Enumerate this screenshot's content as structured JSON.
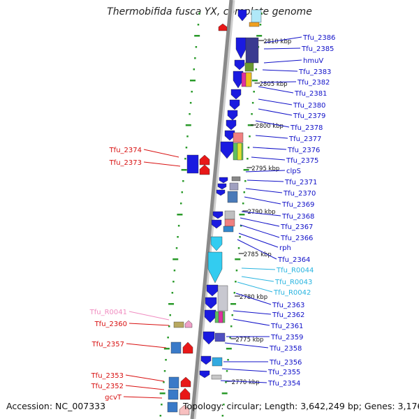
{
  "title": "Thermobifida fusca YX, complete genome",
  "footer": {
    "accession": "Accession: NC_007333",
    "topology": "Topology: circular; Length: 3,642,249 bp; Genes: 3,176"
  },
  "colors": {
    "forward_label": "#1010c8",
    "reverse_label": "#d81010",
    "rna_label": "#28b4e0",
    "pseudo_label": "#f08cc0",
    "backbone": "#8a8a8a",
    "tick": "#2a9a2a"
  },
  "ruler_labels": [
    "2810 kbp",
    "2805 kbp",
    "2800 kbp",
    "2795 kbp",
    "2790 kbp",
    "2785 kbp",
    "2780 kbp",
    "2775 kbp",
    "2770 kbp"
  ],
  "forward_genes": [
    "Tfu_2386",
    "Tfu_2385",
    "hmuV",
    "Tfu_2383",
    "Tfu_2382",
    "Tfu_2381",
    "Tfu_2380",
    "Tfu_2379",
    "Tfu_2378",
    "Tfu_2377",
    "Tfu_2376",
    "Tfu_2375",
    "clpS",
    "Tfu_2371",
    "Tfu_2370",
    "Tfu_2369",
    "Tfu_2368",
    "Tfu_2367",
    "Tfu_2366",
    "rph",
    "Tfu_2364",
    "Tfu_R0044",
    "Tfu_R0043",
    "Tfu_R0042",
    "Tfu_2363",
    "Tfu_2362",
    "Tfu_2361",
    "Tfu_2359",
    "Tfu_2358",
    "Tfu_2356",
    "Tfu_2355",
    "Tfu_2354"
  ],
  "reverse_genes": [
    "Tfu_2374",
    "Tfu_2373",
    "Tfu_R0041",
    "Tfu_2360",
    "Tfu_2357",
    "Tfu_2353",
    "Tfu_2352",
    "gcvT"
  ]
}
